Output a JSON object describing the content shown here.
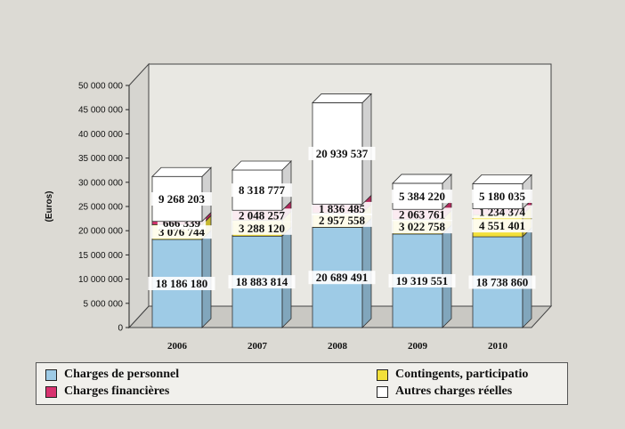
{
  "chart_data": {
    "type": "bar",
    "stacked": true,
    "ylabel": "(Euros)",
    "ylim": [
      0,
      50000000
    ],
    "yticks": [
      "0",
      "5 000 000",
      "10 000 000",
      "15 000 000",
      "20 000 000",
      "25 000 000",
      "30 000 000",
      "35 000 000",
      "40 000 000",
      "45 000 000",
      "50 000 000"
    ],
    "categories": [
      "2006",
      "2007",
      "2008",
      "2009",
      "2010"
    ],
    "series": [
      {
        "name": "Charges de personnel",
        "color": "#9ecbe6",
        "values": [
          18186180,
          18883814,
          20689491,
          19319551,
          18738860
        ],
        "labels": [
          "18 186 180",
          "18 883 814",
          "20 689 491",
          "19 319 551",
          "18 738 860"
        ]
      },
      {
        "name": "Contingents, participations",
        "color": "#f2e03a",
        "values": [
          3076744,
          3288120,
          2957558,
          3022758,
          4551401
        ],
        "labels": [
          "3 076 744",
          "3 288 120",
          "2 957 558",
          "3 022 758",
          "4 551 401"
        ]
      },
      {
        "name": "Charges financières",
        "color": "#d8326f",
        "values": [
          666339,
          2048257,
          1836485,
          2063761,
          1234374
        ],
        "labels": [
          "666 339",
          "2 048 257",
          "1 836 485",
          "2 063 761",
          "1 234 374"
        ]
      },
      {
        "name": "Autres charges réelles",
        "color": "#ffffff",
        "values": [
          9268203,
          8318777,
          20939537,
          5384220,
          5180035
        ],
        "labels": [
          "9 268 203",
          "8 318 777",
          "20 939 537",
          "5 384 220",
          "5 180 035"
        ]
      }
    ],
    "legend": "bottom",
    "grid": false
  },
  "legend": {
    "items": [
      {
        "label": "Charges de personnel",
        "color": "#9ecbe6"
      },
      {
        "label": "Charges financières",
        "color": "#d8326f"
      },
      {
        "label": "Contingents, participatio",
        "color": "#f2e03a"
      },
      {
        "label": "Autres charges réelles",
        "color": "#ffffff"
      }
    ]
  }
}
